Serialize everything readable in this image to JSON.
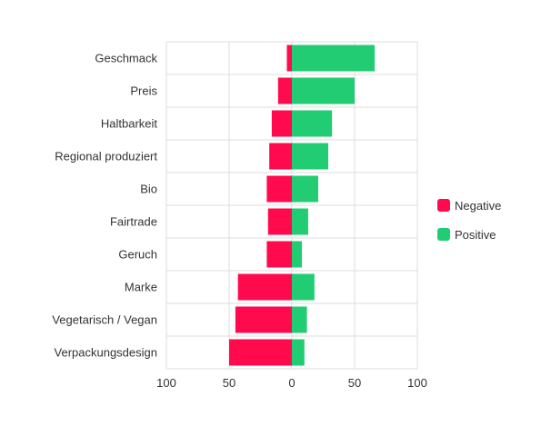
{
  "chart_data": {
    "type": "bar",
    "orientation": "horizontal",
    "stacked": "diverging",
    "categories": [
      "Geschmack",
      "Preis",
      "Haltbarkeit",
      "Regional produziert",
      "Bio",
      "Fairtrade",
      "Geruch",
      "Marke",
      "Vegetarisch / Vegan",
      "Verpackungsdesign"
    ],
    "series": [
      {
        "name": "Negative",
        "color": "#ff0a4d",
        "values": [
          -4,
          -11,
          -16,
          -18,
          -20,
          -19,
          -20,
          -43,
          -45,
          -50
        ]
      },
      {
        "name": "Positive",
        "color": "#22cc72",
        "values": [
          66,
          50,
          32,
          29,
          21,
          13,
          8,
          18,
          12,
          10
        ]
      }
    ],
    "xlim": [
      -100,
      100
    ],
    "xticks": [
      -100,
      -50,
      0,
      50,
      100
    ],
    "xtick_labels": [
      "100",
      "50",
      "0",
      "50",
      "100"
    ],
    "grid": true,
    "legend_position": "right"
  }
}
